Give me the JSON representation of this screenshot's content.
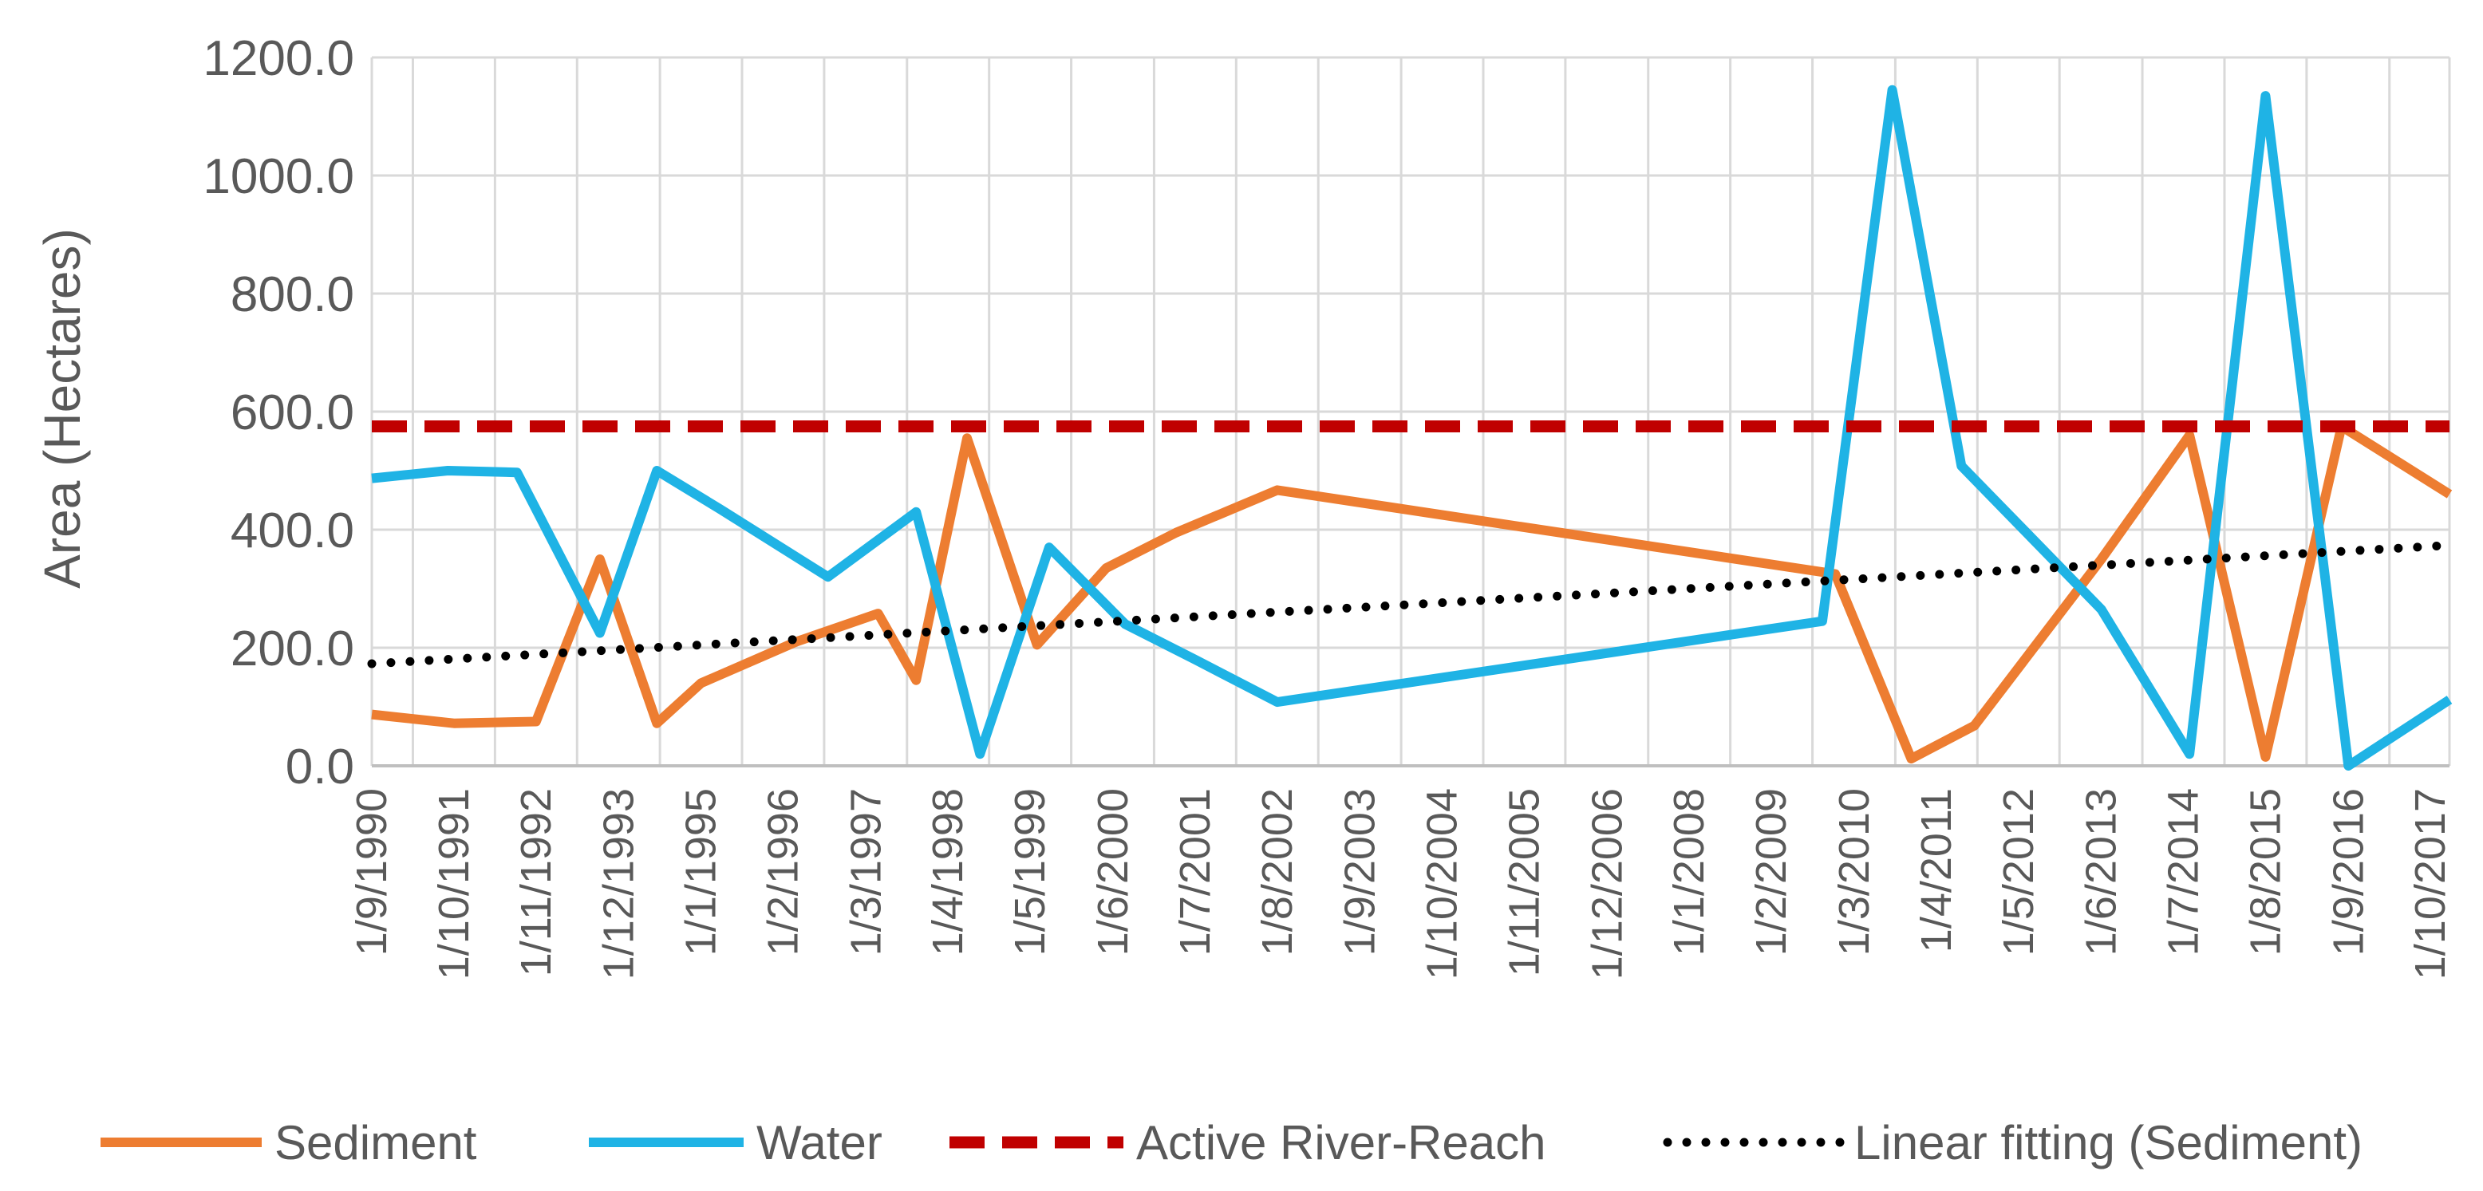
{
  "chart_data": {
    "type": "line",
    "title": "",
    "xlabel": "",
    "ylabel": "Area (Hectares)",
    "ylim": [
      0,
      1200
    ],
    "y_ticks": [
      "0.0",
      "200.0",
      "400.0",
      "600.0",
      "800.0",
      "1000.0",
      "1200.0"
    ],
    "x_range": [
      1990.67,
      2018.0
    ],
    "grid": true,
    "legend_position": "bottom",
    "x_tick_labels": [
      {
        "label": "1/9/1990",
        "x": 1990.67
      },
      {
        "label": "1/10/1991",
        "x": 1991.75
      },
      {
        "label": "1/11/1992",
        "x": 1992.83
      },
      {
        "label": "1/12/1993",
        "x": 1993.92
      },
      {
        "label": "1/1/1995",
        "x": 1995.0
      },
      {
        "label": "1/2/1996",
        "x": 1996.08
      },
      {
        "label": "1/3/1997",
        "x": 1997.17
      },
      {
        "label": "1/4/1998",
        "x": 1998.25
      },
      {
        "label": "1/5/1999",
        "x": 1999.33
      },
      {
        "label": "1/6/2000",
        "x": 2000.42
      },
      {
        "label": "1/7/2001",
        "x": 2001.5
      },
      {
        "label": "1/8/2002",
        "x": 2002.58
      },
      {
        "label": "1/9/2003",
        "x": 2003.67
      },
      {
        "label": "1/10/2004",
        "x": 2004.75
      },
      {
        "label": "1/11/2005",
        "x": 2005.83
      },
      {
        "label": "1/12/2006",
        "x": 2006.92
      },
      {
        "label": "1/1/2008",
        "x": 2008.0
      },
      {
        "label": "1/2/2009",
        "x": 2009.08
      },
      {
        "label": "1/3/2010",
        "x": 2010.17
      },
      {
        "label": "1/4/2011",
        "x": 2011.25
      },
      {
        "label": "1/5/2012",
        "x": 2012.33
      },
      {
        "label": "1/6/2013",
        "x": 2013.42
      },
      {
        "label": "1/7/2014",
        "x": 2014.5
      },
      {
        "label": "1/8/2015",
        "x": 2015.58
      },
      {
        "label": "1/9/2016",
        "x": 2016.67
      },
      {
        "label": "1/10/2017",
        "x": 2017.75
      }
    ],
    "series": [
      {
        "name": "Sediment",
        "color": "#ED7D31",
        "style": "solid",
        "x": [
          1990.67,
          1991.75,
          1992.83,
          1993.67,
          1994.42,
          1995.0,
          1996.25,
          1997.33,
          1997.83,
          1998.5,
          1999.42,
          2000.33,
          2001.25,
          2002.58,
          2009.92,
          2010.92,
          2011.75,
          2013.42,
          2014.58,
          2015.58,
          2016.58,
          2018.0
        ],
        "values": [
          87,
          72,
          75,
          350,
          72,
          140,
          210,
          258,
          145,
          555,
          205,
          335,
          395,
          467,
          325,
          12,
          68,
          350,
          560,
          15,
          575,
          460
        ]
      },
      {
        "name": "Water",
        "color": "#1FB3E5",
        "style": "solid",
        "x": [
          1990.67,
          1991.67,
          1992.58,
          1993.67,
          1994.42,
          1995.25,
          1996.67,
          1997.83,
          1998.67,
          1999.58,
          2000.58,
          2001.5,
          2002.58,
          2009.75,
          2010.67,
          2011.58,
          2013.42,
          2014.58,
          2015.58,
          2016.67,
          2018.0
        ],
        "values": [
          487,
          500,
          497,
          225,
          500,
          435,
          320,
          430,
          20,
          370,
          240,
          180,
          108,
          245,
          1145,
          508,
          265,
          20,
          1135,
          0,
          112
        ]
      },
      {
        "name": "Active River-Reach",
        "color": "#C00000",
        "style": "dashed",
        "x": [
          1990.67,
          2018.0
        ],
        "values": [
          575,
          575
        ]
      },
      {
        "name": "Linear fitting (Sediment)",
        "color": "#000000",
        "style": "dotted",
        "x": [
          1990.67,
          2017.92
        ],
        "values": [
          173,
          373
        ]
      }
    ]
  }
}
